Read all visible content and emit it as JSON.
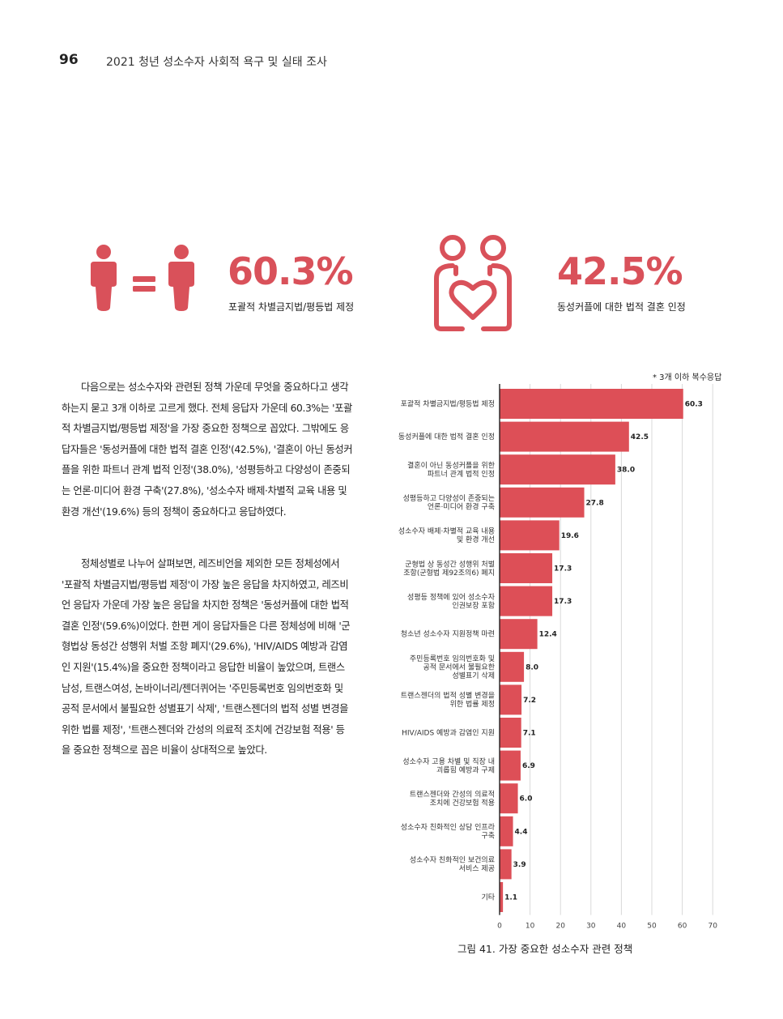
{
  "header": {
    "page_number": "96",
    "running_title": "2021 청년 성소수자 사회적 욕구 및 실태 조사"
  },
  "stats": [
    {
      "value": "60.3%",
      "caption": "포괄적 차별금지법/평등법 제정",
      "icon": "equality-people-icon"
    },
    {
      "value": "42.5%",
      "caption": "동성커플에 대한 법적 결혼 인정",
      "icon": "couple-heart-icon"
    }
  ],
  "body": {
    "paragraph1": "다음으로는 성소수자와 관련된 정책 가운데 무엇을 중요하다고 생각하는지 묻고 3개 이하로 고르게 했다. 전체 응답자 가운데 60.3%는 '포괄적 차별금지법/평등법 제정'을 가장 중요한 정책으로 꼽았다. 그밖에도 응답자들은 '동성커플에 대한 법적 결혼 인정'(42.5%), '결혼이 아닌 동성커플을 위한 파트너 관계 법적 인정'(38.0%), '성평등하고 다양성이 존중되는 언론·미디어 환경 구축'(27.8%), '성소수자 배제·차별적 교육 내용 및 환경 개선'(19.6%) 등의 정책이 중요하다고 응답하였다.",
    "paragraph2": "정체성별로 나누어 살펴보면, 레즈비언을 제외한 모든 정체성에서 '포괄적 차별금지법/평등법 제정'이 가장 높은 응답을 차지하였고, 레즈비언 응답자 가운데 가장 높은 응답을 차지한 정책은 '동성커플에 대한 법적 결혼 인정'(59.6%)이었다. 한편 게이 응답자들은 다른 정체성에 비해 '군형법상 동성간 성행위 처벌 조항 폐지'(29.6%), 'HIV/AIDS 예방과 감염인 지원'(15.4%)을 중요한 정책이라고 응답한 비율이 높았으며, 트랜스남성, 트랜스여성, 논바이너리/젠더퀴어는 '주민등록번호 임의번호화 및 공적 문서에서 불필요한 성별표기 삭제', '트랜스젠더의 법적 성별 변경을 위한 법률 제정', '트랜스젠더와 간성의 의료적 조치에 건강보험 적용' 등을 중요한 정책으로 꼽은 비율이 상대적으로 높았다."
  },
  "chart_note": "* 3개 이하 복수응답",
  "figure_caption": "그림 41. 가장 중요한 성소수자 관련 정책",
  "colors": {
    "accent": "#d9515a",
    "bar": "#dd4f57",
    "grid": "#d9d9d9"
  },
  "chart_data": {
    "type": "bar",
    "orientation": "horizontal",
    "categories": [
      [
        "포괄적 차별금지법/평등법 제정"
      ],
      [
        "동성커플에 대한 법적 결혼 인정"
      ],
      [
        "결혼이 아닌 동성커플을 위한",
        "파트너 관계 법적 인정"
      ],
      [
        "성평등하고 다양성이 존중되는",
        "언론·미디어 환경 구축"
      ],
      [
        "성소수자 배제·차별적 교육 내용",
        "및 환경 개선"
      ],
      [
        "군형법 상 동성간 성행위 처벌",
        "조항(군형법 제92조의6) 폐지"
      ],
      [
        "성평등 정책에 있어 성소수자",
        "인권보장 포함"
      ],
      [
        "청소년 성소수자 지원정책 마련"
      ],
      [
        "주민등록번호 임의번호화 및",
        "공적 문서에서 불필요한",
        "성별표기 삭제"
      ],
      [
        "트랜스젠더의 법적 성별 변경을",
        "위한 법률 제정"
      ],
      [
        "HIV/AIDS 예방과 감염인 지원"
      ],
      [
        "성소수자 고용 차별 및 직장 내",
        "괴롭힘 예방과 구제"
      ],
      [
        "트랜스젠더와 간성의 의료적",
        "조치에 건강보험 적용"
      ],
      [
        "성소수자 친화적인 상담 인프라",
        "구축"
      ],
      [
        "성소수자 친화적인 보건의료",
        "서비스 제공"
      ],
      [
        "기타"
      ]
    ],
    "values": [
      60.3,
      42.5,
      38.0,
      27.8,
      19.6,
      17.3,
      17.3,
      12.4,
      8.0,
      7.2,
      7.1,
      6.9,
      6.0,
      4.4,
      3.9,
      1.1
    ],
    "value_labels": [
      "60.3",
      "42.5",
      "38.0",
      "27.8",
      "19.6",
      "17.3",
      "17.3",
      "12.4",
      "8.0",
      "7.2",
      "7.1",
      "6.9",
      "6.0",
      "4.4",
      "3.9",
      "1.1"
    ],
    "xlim": [
      0,
      70
    ],
    "xticks": [
      "0",
      "10",
      "20",
      "30",
      "40",
      "50",
      "60",
      "70"
    ],
    "grid": true
  }
}
